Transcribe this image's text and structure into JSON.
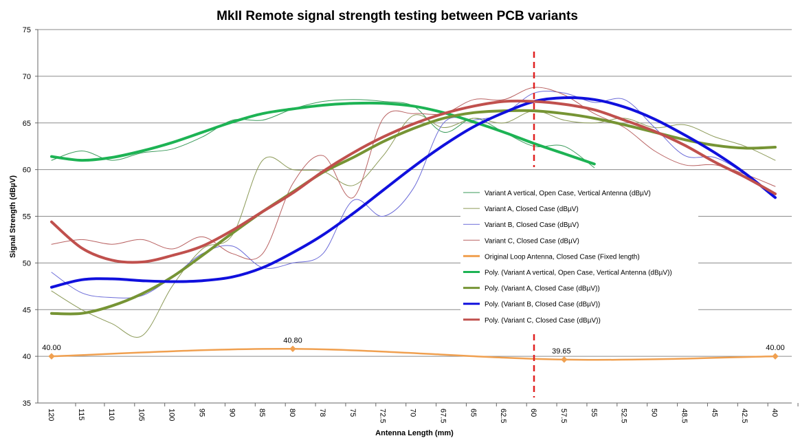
{
  "chart_data": {
    "type": "line",
    "title": "MkII Remote signal strength testing between PCB variants",
    "xlabel": "Antenna Length (mm)",
    "ylabel": "Signal Strength  (dBµV)",
    "ylim": [
      35,
      75
    ],
    "yticks": [
      35,
      40,
      45,
      50,
      55,
      60,
      65,
      70,
      75
    ],
    "grid": true,
    "legend_position": "right",
    "categories": [
      "120",
      "115",
      "110",
      "105",
      "100",
      "95",
      "90",
      "85",
      "80",
      "78",
      "75",
      "72.5",
      "70",
      "67.5",
      "65",
      "62.5",
      "60",
      "57.5",
      "55",
      "52.5",
      "50",
      "48.5",
      "45",
      "42.5",
      "40"
    ],
    "series": [
      {
        "name": "Variant A vertical, Open Case, Vertical Antenna (dBµV)",
        "color": "#3a9a5a",
        "width": 1,
        "style": "thin",
        "values": [
          61.0,
          62.0,
          61.0,
          61.8,
          62.2,
          63.5,
          65.3,
          65.3,
          66.5,
          67.3,
          67.5,
          67.3,
          66.8,
          64.0,
          65.5,
          64.0,
          62.5,
          62.5,
          60.2,
          null,
          null,
          null,
          null,
          null,
          null
        ]
      },
      {
        "name": "Variant A, Closed Case (dBµV)",
        "color": "#8c9a58",
        "width": 1,
        "style": "thin",
        "values": [
          47.0,
          45.0,
          43.5,
          42.2,
          47.5,
          51.5,
          53.0,
          61.0,
          60.0,
          59.8,
          58.3,
          61.5,
          65.8,
          64.5,
          65.5,
          65.0,
          66.3,
          65.3,
          65.0,
          65.5,
          64.5,
          64.8,
          63.5,
          62.5,
          61.0
        ]
      },
      {
        "name": "Variant B, Closed Case (dBµV)",
        "color": "#6a6ad8",
        "width": 1,
        "style": "thin",
        "values": [
          49.0,
          46.8,
          46.3,
          46.5,
          48.5,
          51.0,
          51.8,
          49.5,
          50.0,
          51.0,
          56.7,
          55.0,
          58.0,
          65.0,
          65.3,
          66.0,
          68.2,
          68.2,
          67.2,
          67.5,
          64.5,
          61.5,
          61.3,
          59.5,
          57.0
        ]
      },
      {
        "name": "Variant C, Closed Case (dBµV)",
        "color": "#b86060",
        "width": 1,
        "style": "thin",
        "values": [
          52.0,
          52.5,
          52.0,
          52.5,
          51.5,
          52.8,
          51.0,
          51.0,
          58.5,
          61.5,
          57.0,
          65.5,
          66.0,
          66.0,
          67.5,
          67.5,
          68.8,
          68.0,
          66.0,
          64.5,
          62.0,
          60.5,
          60.5,
          59.5,
          58.2
        ]
      },
      {
        "name": "Original Loop Antenna, Closed Case (Fixed length)",
        "color": "#f0a050",
        "width": 2.5,
        "style": "orange",
        "values": [
          40.0,
          null,
          null,
          null,
          null,
          null,
          null,
          null,
          40.8,
          null,
          null,
          null,
          null,
          null,
          null,
          null,
          null,
          39.65,
          null,
          null,
          null,
          null,
          null,
          null,
          40.0
        ]
      },
      {
        "name": "Poly. (Variant A vertical, Open Case, Vertical Antenna (dBµV))",
        "color": "#1db354",
        "width": 4,
        "style": "thick",
        "values": [
          61.4,
          61.0,
          61.3,
          62.0,
          62.9,
          64.0,
          65.1,
          66.0,
          66.5,
          66.9,
          67.1,
          67.1,
          66.8,
          66.1,
          65.1,
          64.0,
          62.8,
          61.7,
          60.6,
          null,
          null,
          null,
          null,
          null,
          null
        ]
      },
      {
        "name": "Poly. (Variant A, Closed Case (dBµV))",
        "color": "#769434",
        "width": 4,
        "style": "thick",
        "values": [
          44.6,
          44.6,
          45.4,
          46.7,
          48.5,
          50.8,
          53.2,
          55.5,
          57.6,
          59.7,
          61.3,
          63.0,
          64.4,
          65.5,
          66.1,
          66.3,
          66.3,
          66.0,
          65.5,
          64.8,
          64.0,
          63.2,
          62.6,
          62.3,
          62.4
        ]
      },
      {
        "name": "Poly. (Variant B, Closed Case (dBµV))",
        "color": "#1010dd",
        "width": 4,
        "style": "thick",
        "values": [
          47.4,
          48.2,
          48.3,
          48.1,
          48.0,
          48.1,
          48.5,
          49.5,
          51.1,
          53.0,
          55.3,
          57.8,
          60.3,
          62.6,
          64.6,
          66.1,
          67.3,
          67.7,
          67.5,
          66.7,
          65.4,
          63.7,
          61.8,
          59.6,
          57.0
        ]
      },
      {
        "name": "Poly. (Variant C, Closed Case (dBµV))",
        "color": "#c0504d",
        "width": 4,
        "style": "thick",
        "values": [
          54.4,
          51.6,
          50.3,
          50.1,
          50.8,
          51.8,
          53.5,
          55.5,
          57.5,
          59.8,
          61.8,
          63.5,
          64.9,
          66.0,
          66.8,
          67.3,
          67.3,
          67.0,
          66.4,
          65.3,
          64.1,
          62.6,
          60.8,
          59.2,
          57.4
        ]
      }
    ],
    "point_labels": [
      {
        "category": "120",
        "value": 40.0,
        "text": "40.00"
      },
      {
        "category": "80",
        "value": 40.8,
        "text": "40.80"
      },
      {
        "category": "57.5",
        "value": 39.65,
        "text": "39.65"
      },
      {
        "category": "40",
        "value": 40.0,
        "text": "40.00"
      }
    ],
    "reference_line": {
      "category": "60",
      "color": "#e02020",
      "style": "dashed"
    }
  }
}
